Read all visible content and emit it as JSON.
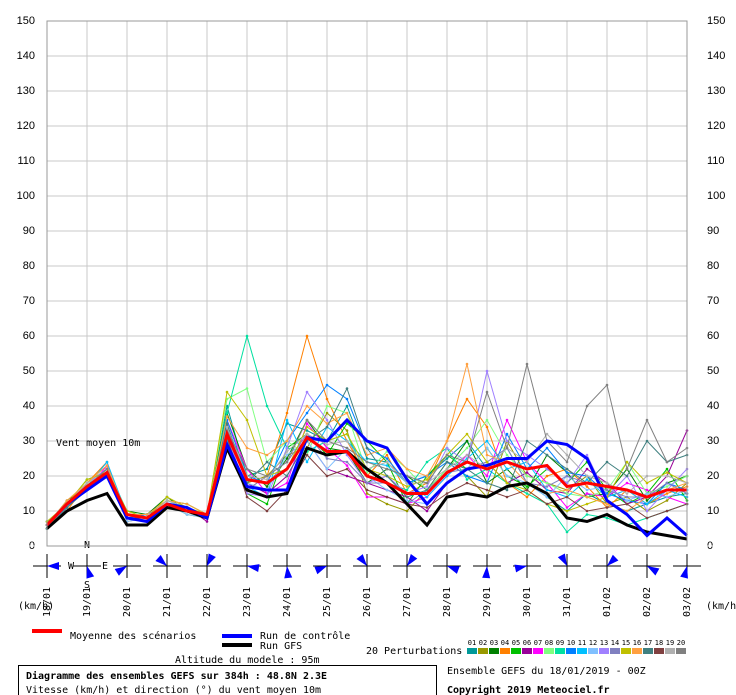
{
  "chart_data": {
    "type": "line",
    "title": "Diagramme des ensembles GEFS sur 384h : 48.8N 2.3E",
    "subtitle": "Vitesse (km/h) et direction (°) du vent moyen 10m",
    "annotation": "Vent moyen 10m",
    "y_label": "(km/h)",
    "altitude": "Altitude du modele : 95m",
    "run_info": "Ensemble GEFS du 18/01/2019 - 00Z",
    "copyright": "Copyright 2019 Meteociel.fr",
    "perturbations_label": "20 Perturbations",
    "compass": [
      "N",
      "W",
      "E",
      "S"
    ],
    "grid": true,
    "categories": [
      "18/01",
      null,
      "19/01",
      null,
      "20/01",
      null,
      "21/01",
      null,
      "22/01",
      null,
      "23/01",
      null,
      "24/01",
      null,
      "25/01",
      null,
      "26/01",
      null,
      "27/01",
      null,
      "28/01",
      null,
      "29/01",
      null,
      "30/01",
      null,
      "31/01",
      null,
      "01/02",
      null,
      "02/02",
      null,
      "03/02"
    ],
    "ylim": [
      0,
      150
    ],
    "yticks": [
      0,
      10,
      20,
      30,
      40,
      50,
      60,
      70,
      80,
      90,
      100,
      110,
      120,
      130,
      140,
      150
    ],
    "series": [
      {
        "name": "Moyenne des scénarios",
        "color": "#ff0000",
        "values": [
          6,
          12,
          17,
          21,
          9,
          8,
          12,
          10,
          9,
          32,
          19,
          18,
          22,
          31,
          27,
          27,
          20,
          18,
          15,
          15,
          21,
          24,
          22,
          24,
          22,
          23,
          17,
          18,
          17,
          16,
          14,
          16,
          16
        ]
      },
      {
        "name": "Run de contrôle",
        "color": "#0000ff",
        "values": [
          6,
          12,
          16,
          20,
          8,
          7,
          12,
          11,
          8,
          29,
          17,
          16,
          16,
          31,
          30,
          36,
          30,
          28,
          19,
          12,
          18,
          22,
          23,
          25,
          25,
          30,
          29,
          25,
          13,
          9,
          3,
          8,
          3
        ]
      },
      {
        "name": "Run GFS",
        "color": "#000000",
        "values": [
          5,
          10,
          13,
          15,
          6,
          6,
          11,
          10,
          8,
          28,
          16,
          14,
          15,
          28,
          26,
          27,
          22,
          18,
          12,
          6,
          14,
          15,
          14,
          17,
          18,
          15,
          8,
          7,
          9,
          6,
          4,
          3,
          2
        ]
      },
      {
        "name": "01",
        "color": "#009999",
        "values": [
          7,
          11,
          18,
          22,
          8,
          9,
          13,
          11,
          8,
          40,
          20,
          22,
          35,
          33,
          30,
          40,
          25,
          24,
          18,
          20,
          25,
          30,
          22,
          28,
          18,
          14,
          10,
          15,
          12,
          10,
          12,
          14,
          15
        ]
      },
      {
        "name": "02",
        "color": "#999900",
        "values": [
          5,
          12,
          16,
          20,
          9,
          7,
          12,
          9,
          8,
          35,
          18,
          20,
          26,
          28,
          38,
          33,
          15,
          12,
          10,
          16,
          24,
          20,
          14,
          30,
          20,
          18,
          16,
          20,
          12,
          14,
          10,
          13,
          18
        ]
      },
      {
        "name": "03",
        "color": "#008000",
        "values": [
          6,
          13,
          17,
          22,
          10,
          9,
          14,
          10,
          9,
          38,
          22,
          17,
          25,
          36,
          28,
          27,
          18,
          22,
          20,
          16,
          22,
          30,
          18,
          22,
          16,
          26,
          21,
          14,
          15,
          22,
          13,
          18,
          20
        ]
      },
      {
        "name": "04",
        "color": "#ff8000",
        "values": [
          7,
          10,
          18,
          24,
          7,
          8,
          11,
          10,
          8,
          30,
          16,
          20,
          38,
          60,
          42,
          30,
          20,
          26,
          15,
          18,
          30,
          42,
          34,
          18,
          14,
          20,
          22,
          17,
          11,
          16,
          12,
          15,
          17
        ]
      },
      {
        "name": "05",
        "color": "#00c000",
        "values": [
          6,
          12,
          19,
          21,
          8,
          8,
          13,
          12,
          9,
          32,
          15,
          12,
          28,
          32,
          26,
          35,
          30,
          24,
          12,
          20,
          26,
          22,
          28,
          20,
          17,
          22,
          18,
          24,
          16,
          12,
          15,
          22,
          13
        ]
      },
      {
        "name": "06",
        "color": "#990099",
        "values": [
          5,
          11,
          17,
          20,
          9,
          8,
          12,
          11,
          7,
          34,
          18,
          15,
          20,
          30,
          22,
          20,
          18,
          16,
          14,
          10,
          18,
          22,
          24,
          18,
          21,
          16,
          15,
          22,
          18,
          12,
          14,
          20,
          33
        ]
      },
      {
        "name": "07",
        "color": "#ff00ff",
        "values": [
          6,
          12,
          16,
          23,
          8,
          9,
          12,
          10,
          8,
          36,
          22,
          15,
          18,
          35,
          28,
          23,
          14,
          14,
          12,
          14,
          20,
          26,
          20,
          36,
          24,
          18,
          11,
          15,
          14,
          18,
          16,
          14,
          12
        ]
      },
      {
        "name": "08",
        "color": "#80ff80",
        "values": [
          6,
          12,
          18,
          22,
          10,
          8,
          13,
          11,
          9,
          42,
          45,
          24,
          30,
          26,
          40,
          38,
          21,
          27,
          22,
          16,
          22,
          28,
          36,
          26,
          20,
          18,
          15,
          14,
          16,
          24,
          15,
          17,
          20
        ]
      },
      {
        "name": "09",
        "color": "#00e0a0",
        "values": [
          5,
          11,
          17,
          21,
          9,
          7,
          11,
          10,
          8,
          38,
          60,
          40,
          28,
          27,
          30,
          32,
          20,
          18,
          16,
          24,
          28,
          19,
          22,
          18,
          15,
          12,
          4,
          9,
          8,
          6,
          8,
          10,
          12
        ]
      },
      {
        "name": "10",
        "color": "#0080ff",
        "values": [
          6,
          12,
          18,
          22,
          8,
          9,
          12,
          10,
          9,
          36,
          20,
          18,
          30,
          38,
          46,
          42,
          28,
          25,
          18,
          20,
          24,
          20,
          18,
          32,
          22,
          28,
          21,
          20,
          15,
          13,
          12,
          18,
          16
        ]
      },
      {
        "name": "11",
        "color": "#00c0ff",
        "values": [
          7,
          11,
          17,
          24,
          9,
          9,
          13,
          11,
          8,
          30,
          17,
          14,
          36,
          24,
          34,
          30,
          24,
          23,
          18,
          14,
          20,
          25,
          30,
          22,
          24,
          16,
          14,
          19,
          14,
          16,
          12,
          16,
          14
        ]
      },
      {
        "name": "12",
        "color": "#80c0ff",
        "values": [
          6,
          12,
          17,
          21,
          7,
          8,
          12,
          9,
          8,
          33,
          18,
          16,
          26,
          30,
          22,
          28,
          20,
          16,
          13,
          12,
          18,
          22,
          28,
          20,
          18,
          14,
          20,
          16,
          17,
          13,
          15,
          14,
          16
        ]
      },
      {
        "name": "13",
        "color": "#a080ff",
        "values": [
          6,
          12,
          18,
          22,
          9,
          7,
          12,
          11,
          8,
          32,
          15,
          14,
          28,
          44,
          36,
          26,
          18,
          20,
          15,
          17,
          28,
          24,
          50,
          30,
          26,
          22,
          18,
          26,
          14,
          20,
          10,
          16,
          22
        ]
      },
      {
        "name": "14",
        "color": "#8080c0",
        "values": [
          6,
          11,
          17,
          20,
          9,
          8,
          12,
          10,
          8,
          29,
          16,
          20,
          24,
          32,
          25,
          24,
          18,
          18,
          12,
          16,
          21,
          22,
          24,
          28,
          18,
          17,
          20,
          18,
          16,
          14,
          14,
          18,
          15
        ]
      },
      {
        "name": "15",
        "color": "#c0c000",
        "values": [
          7,
          12,
          19,
          21,
          10,
          8,
          14,
          11,
          9,
          44,
          36,
          20,
          22,
          34,
          30,
          32,
          22,
          20,
          17,
          19,
          26,
          32,
          24,
          18,
          16,
          12,
          10,
          12,
          14,
          24,
          18,
          21,
          18
        ]
      },
      {
        "name": "16",
        "color": "#ffa040",
        "values": [
          6,
          13,
          18,
          23,
          9,
          9,
          13,
          12,
          9,
          37,
          28,
          26,
          30,
          40,
          35,
          38,
          26,
          28,
          22,
          20,
          30,
          52,
          26,
          24,
          18,
          15,
          16,
          14,
          12,
          10,
          14,
          16,
          18
        ]
      },
      {
        "name": "17",
        "color": "#408080",
        "values": [
          5,
          11,
          16,
          20,
          8,
          7,
          12,
          10,
          8,
          35,
          18,
          24,
          20,
          30,
          34,
          45,
          28,
          20,
          14,
          16,
          24,
          22,
          18,
          16,
          30,
          26,
          22,
          18,
          24,
          20,
          30,
          24,
          26
        ]
      },
      {
        "name": "18",
        "color": "#804040",
        "values": [
          6,
          12,
          17,
          22,
          8,
          8,
          12,
          10,
          8,
          31,
          14,
          10,
          16,
          26,
          20,
          22,
          16,
          14,
          12,
          11,
          15,
          18,
          16,
          14,
          16,
          12,
          14,
          10,
          11,
          12,
          8,
          10,
          12
        ]
      },
      {
        "name": "19",
        "color": "#b0b0b0",
        "values": [
          6,
          12,
          18,
          21,
          9,
          8,
          13,
          11,
          8,
          34,
          20,
          19,
          27,
          32,
          29,
          30,
          22,
          24,
          18,
          18,
          22,
          26,
          22,
          28,
          24,
          32,
          26,
          20,
          18,
          15,
          20,
          20,
          18
        ]
      },
      {
        "name": "20",
        "color": "#808080",
        "values": [
          6,
          12,
          17,
          22,
          9,
          8,
          12,
          10,
          8,
          33,
          22,
          20,
          24,
          36,
          30,
          28,
          24,
          22,
          20,
          18,
          26,
          24,
          44,
          28,
          52,
          30,
          24,
          40,
          46,
          22,
          36,
          24,
          28
        ]
      }
    ]
  }
}
